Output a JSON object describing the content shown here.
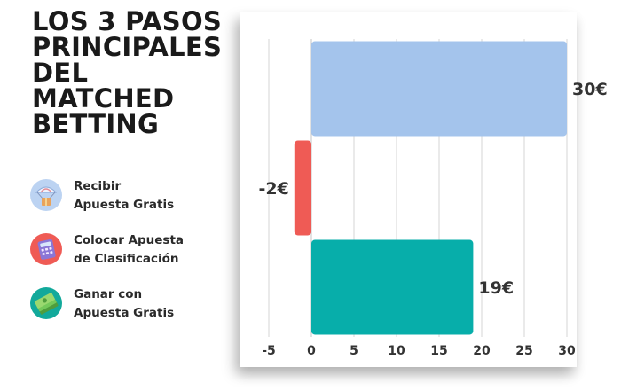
{
  "title_lines": [
    "LOS 3 PASOS",
    "PRINCIPALES",
    "DEL MATCHED",
    "BETTING"
  ],
  "legend": [
    {
      "icon": "parachute-gift-icon",
      "lines": [
        "Recibir",
        "Apuesta Gratis"
      ],
      "icon_bg": "#bcd3f2",
      "icon_fg": "#e9a35b"
    },
    {
      "icon": "calculator-icon",
      "lines": [
        "Colocar Apuesta",
        "de Clasificación"
      ],
      "icon_bg": "#ef5b55",
      "icon_fg": "#8a76d6"
    },
    {
      "icon": "money-stack-icon",
      "lines": [
        "Ganar con",
        "Apuesta Gratis"
      ],
      "icon_bg": "#12a99b",
      "icon_fg": "#74c95a"
    }
  ],
  "chart_data": {
    "type": "bar",
    "orientation": "horizontal",
    "title": "LOS 3 PASOS PRINCIPALES DEL MATCHED BETTING",
    "categories": [
      "Recibir Apuesta Gratis",
      "Colocar Apuesta de Clasificación",
      "Ganar con Apuesta Gratis"
    ],
    "values": [
      30,
      -2,
      19
    ],
    "data_labels": [
      "30€",
      "-2€",
      "19€"
    ],
    "colors": [
      "#a4c4ec",
      "#ef5b55",
      "#07aeaa"
    ],
    "xlim": [
      -5,
      30
    ],
    "xticks": [
      -5,
      0,
      5,
      10,
      15,
      20,
      25,
      30
    ],
    "xlabel": "",
    "ylabel": "",
    "grid": true,
    "legend_position": "left"
  }
}
